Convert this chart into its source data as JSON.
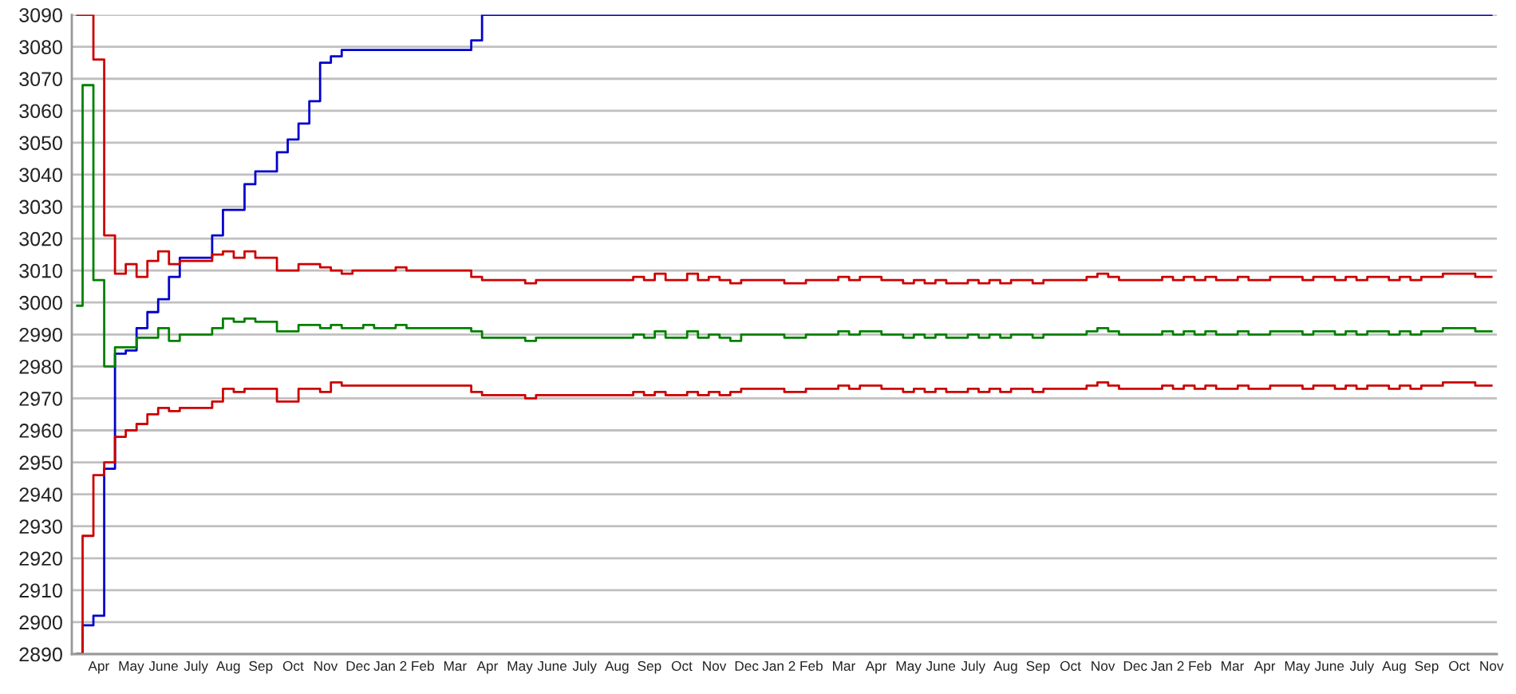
{
  "chart_data": {
    "type": "step",
    "categories": [
      null,
      null,
      "Apr",
      null,
      null,
      "May",
      null,
      null,
      "June",
      null,
      null,
      "July",
      null,
      null,
      "Aug",
      null,
      null,
      "Sep",
      null,
      null,
      "Oct",
      null,
      null,
      "Nov",
      null,
      null,
      "Dec",
      null,
      null,
      "Jan 2",
      null,
      null,
      "Feb",
      null,
      null,
      "Mar",
      null,
      null,
      "Apr",
      null,
      null,
      "May",
      null,
      null,
      "June",
      null,
      null,
      "July",
      null,
      null,
      "Aug",
      null,
      null,
      "Sep",
      null,
      null,
      "Oct",
      null,
      null,
      "Nov",
      null,
      null,
      "Dec",
      null,
      null,
      "Jan 2",
      null,
      null,
      "Feb",
      null,
      null,
      "Mar",
      null,
      null,
      "Apr",
      null,
      null,
      "May",
      null,
      null,
      "June",
      null,
      null,
      "July",
      null,
      null,
      "Aug",
      null,
      null,
      "Sep",
      null,
      null,
      "Oct",
      null,
      null,
      "Nov",
      null,
      null,
      "Dec",
      null,
      null,
      "Jan 2",
      null,
      null,
      "Feb",
      null,
      null,
      "Mar",
      null,
      null,
      "Apr",
      null,
      null,
      "May",
      null,
      null,
      "June",
      null,
      null,
      "July",
      null,
      null,
      "Aug",
      null,
      null,
      "Sep",
      null,
      null,
      "Oct",
      null,
      null,
      "Nov"
    ],
    "series": [
      {
        "color": "#0000cc",
        "values": [
          2890,
          2899,
          2902,
          2948,
          2984,
          2985,
          2992,
          2997,
          3001,
          3008,
          3014,
          3014,
          3014,
          3021,
          3029,
          3029,
          3037,
          3041,
          3041,
          3047,
          3051,
          3056,
          3063,
          3075,
          3077,
          3079,
          3079,
          3079,
          3079,
          3079,
          3079,
          3079,
          3079,
          3079,
          3079,
          3079,
          3079,
          3082,
          3090,
          3090,
          3090,
          3090,
          3090,
          3090,
          3090,
          3090,
          3090,
          3090,
          3090,
          3090,
          3090,
          3090,
          3090,
          3090,
          3090,
          3090,
          3090,
          3090,
          3090,
          3090,
          3090,
          3090,
          3090,
          3090,
          3090,
          3090,
          3090,
          3090,
          3090,
          3090,
          3090,
          3090,
          3090,
          3090,
          3090,
          3090,
          3090,
          3090,
          3090,
          3090,
          3090,
          3090,
          3090,
          3090,
          3090,
          3090,
          3090,
          3090,
          3090,
          3090,
          3090,
          3090,
          3090,
          3090,
          3090,
          3090,
          3090,
          3090,
          3090,
          3090,
          3090,
          3090,
          3090,
          3090,
          3090,
          3090,
          3090,
          3090,
          3090,
          3090,
          3090,
          3090,
          3090,
          3090,
          3090,
          3090,
          3090,
          3090,
          3090,
          3090,
          3090,
          3090,
          3090,
          3090,
          3090,
          3090,
          3090,
          3090,
          3090,
          3090,
          3090,
          3090
        ]
      },
      {
        "color": "#cc0000",
        "values": [
          3090,
          3090,
          3076,
          3021,
          3009,
          3012,
          3008,
          3013,
          3016,
          3012,
          3013,
          3013,
          3013,
          3015,
          3016,
          3014,
          3016,
          3014,
          3014,
          3010,
          3010,
          3012,
          3012,
          3011,
          3010,
          3009,
          3010,
          3010,
          3010,
          3010,
          3011,
          3010,
          3010,
          3010,
          3010,
          3010,
          3010,
          3008,
          3007,
          3007,
          3007,
          3007,
          3006,
          3007,
          3007,
          3007,
          3007,
          3007,
          3007,
          3007,
          3007,
          3007,
          3008,
          3007,
          3009,
          3007,
          3007,
          3009,
          3007,
          3008,
          3007,
          3006,
          3007,
          3007,
          3007,
          3007,
          3006,
          3006,
          3007,
          3007,
          3007,
          3008,
          3007,
          3008,
          3008,
          3007,
          3007,
          3006,
          3007,
          3006,
          3007,
          3006,
          3006,
          3007,
          3006,
          3007,
          3006,
          3007,
          3007,
          3006,
          3007,
          3007,
          3007,
          3007,
          3008,
          3009,
          3008,
          3007,
          3007,
          3007,
          3007,
          3008,
          3007,
          3008,
          3007,
          3008,
          3007,
          3007,
          3008,
          3007,
          3007,
          3008,
          3008,
          3008,
          3007,
          3008,
          3008,
          3007,
          3008,
          3007,
          3008,
          3008,
          3007,
          3008,
          3007,
          3008,
          3008,
          3009,
          3009,
          3009,
          3008,
          3008
        ]
      },
      {
        "color": "#008000",
        "values": [
          2999,
          3068,
          3007,
          2980,
          2986,
          2986,
          2989,
          2989,
          2992,
          2988,
          2990,
          2990,
          2990,
          2992,
          2995,
          2994,
          2995,
          2994,
          2994,
          2991,
          2991,
          2993,
          2993,
          2992,
          2993,
          2992,
          2992,
          2993,
          2992,
          2992,
          2993,
          2992,
          2992,
          2992,
          2992,
          2992,
          2992,
          2991,
          2989,
          2989,
          2989,
          2989,
          2988,
          2989,
          2989,
          2989,
          2989,
          2989,
          2989,
          2989,
          2989,
          2989,
          2990,
          2989,
          2991,
          2989,
          2989,
          2991,
          2989,
          2990,
          2989,
          2988,
          2990,
          2990,
          2990,
          2990,
          2989,
          2989,
          2990,
          2990,
          2990,
          2991,
          2990,
          2991,
          2991,
          2990,
          2990,
          2989,
          2990,
          2989,
          2990,
          2989,
          2989,
          2990,
          2989,
          2990,
          2989,
          2990,
          2990,
          2989,
          2990,
          2990,
          2990,
          2990,
          2991,
          2992,
          2991,
          2990,
          2990,
          2990,
          2990,
          2991,
          2990,
          2991,
          2990,
          2991,
          2990,
          2990,
          2991,
          2990,
          2990,
          2991,
          2991,
          2991,
          2990,
          2991,
          2991,
          2990,
          2991,
          2990,
          2991,
          2991,
          2990,
          2991,
          2990,
          2991,
          2991,
          2992,
          2992,
          2992,
          2991,
          2991
        ]
      },
      {
        "color": "#cc0000",
        "values": [
          2890,
          2927,
          2946,
          2950,
          2958,
          2960,
          2962,
          2965,
          2967,
          2966,
          2967,
          2967,
          2967,
          2969,
          2973,
          2972,
          2973,
          2973,
          2973,
          2969,
          2969,
          2973,
          2973,
          2972,
          2975,
          2974,
          2974,
          2974,
          2974,
          2974,
          2974,
          2974,
          2974,
          2974,
          2974,
          2974,
          2974,
          2972,
          2971,
          2971,
          2971,
          2971,
          2970,
          2971,
          2971,
          2971,
          2971,
          2971,
          2971,
          2971,
          2971,
          2971,
          2972,
          2971,
          2972,
          2971,
          2971,
          2972,
          2971,
          2972,
          2971,
          2972,
          2973,
          2973,
          2973,
          2973,
          2972,
          2972,
          2973,
          2973,
          2973,
          2974,
          2973,
          2974,
          2974,
          2973,
          2973,
          2972,
          2973,
          2972,
          2973,
          2972,
          2972,
          2973,
          2972,
          2973,
          2972,
          2973,
          2973,
          2972,
          2973,
          2973,
          2973,
          2973,
          2974,
          2975,
          2974,
          2973,
          2973,
          2973,
          2973,
          2974,
          2973,
          2974,
          2973,
          2974,
          2973,
          2973,
          2974,
          2973,
          2973,
          2974,
          2974,
          2974,
          2973,
          2974,
          2974,
          2973,
          2974,
          2973,
          2974,
          2974,
          2973,
          2974,
          2973,
          2974,
          2974,
          2975,
          2975,
          2975,
          2974,
          2974
        ]
      }
    ],
    "ylim": [
      2890,
      3090
    ],
    "yticks": [
      2890,
      2900,
      2910,
      2920,
      2930,
      2940,
      2950,
      2960,
      2970,
      2980,
      2990,
      3000,
      3010,
      3020,
      3030,
      3040,
      3050,
      3060,
      3070,
      3080,
      3090
    ],
    "grid": "y"
  }
}
